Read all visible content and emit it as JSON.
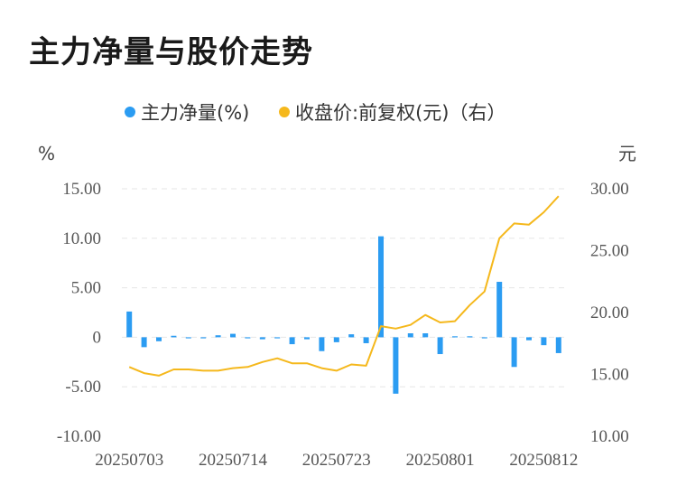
{
  "title": "主力净量与股价走势",
  "chart_data": {
    "type": "bar",
    "legend": [
      {
        "label": "主力净量(%)",
        "color": "#2b9cf2"
      },
      {
        "label": "收盘价:前复权(元)（右）",
        "color": "#f5b81c"
      }
    ],
    "left_unit": "%",
    "right_unit": "元",
    "left_axis": {
      "ticks": [
        "15.00",
        "10.00",
        "5.00",
        "0",
        "-5.00",
        "-10.00"
      ],
      "min": -10,
      "max": 15
    },
    "right_axis": {
      "ticks": [
        "30.00",
        "25.00",
        "20.00",
        "15.00",
        "10.00"
      ],
      "min": 10,
      "max": 30
    },
    "x_labels": [
      {
        "label": "20250703",
        "index": 0
      },
      {
        "label": "20250714",
        "index": 7
      },
      {
        "label": "20250723",
        "index": 14
      },
      {
        "label": "20250801",
        "index": 21
      },
      {
        "label": "20250812",
        "index": 28
      }
    ],
    "bar_count": 30,
    "series": [
      {
        "name": "主力净量(%)",
        "kind": "bar",
        "color": "#2b9cf2",
        "values": [
          2.6,
          -1.0,
          -0.4,
          0.15,
          -0.1,
          -0.1,
          0.2,
          0.35,
          -0.1,
          -0.2,
          -0.1,
          -0.7,
          -0.2,
          -1.4,
          -0.5,
          0.3,
          -0.6,
          10.2,
          -5.7,
          0.4,
          0.4,
          -1.7,
          0.1,
          0.1,
          0.0,
          5.6,
          -3.0,
          -0.3,
          -0.8,
          -1.6
        ]
      },
      {
        "name": "收盘价:前复权(元)（右）",
        "kind": "line",
        "color": "#f5b81c",
        "values": [
          15.6,
          15.1,
          14.9,
          15.4,
          15.4,
          15.3,
          15.3,
          15.5,
          15.6,
          16.0,
          16.3,
          15.9,
          15.9,
          15.5,
          15.3,
          15.8,
          15.7,
          18.9,
          18.7,
          19.0,
          19.8,
          19.2,
          19.3,
          20.6,
          21.7,
          26.0,
          27.2,
          27.1,
          28.1,
          29.4
        ]
      }
    ]
  }
}
